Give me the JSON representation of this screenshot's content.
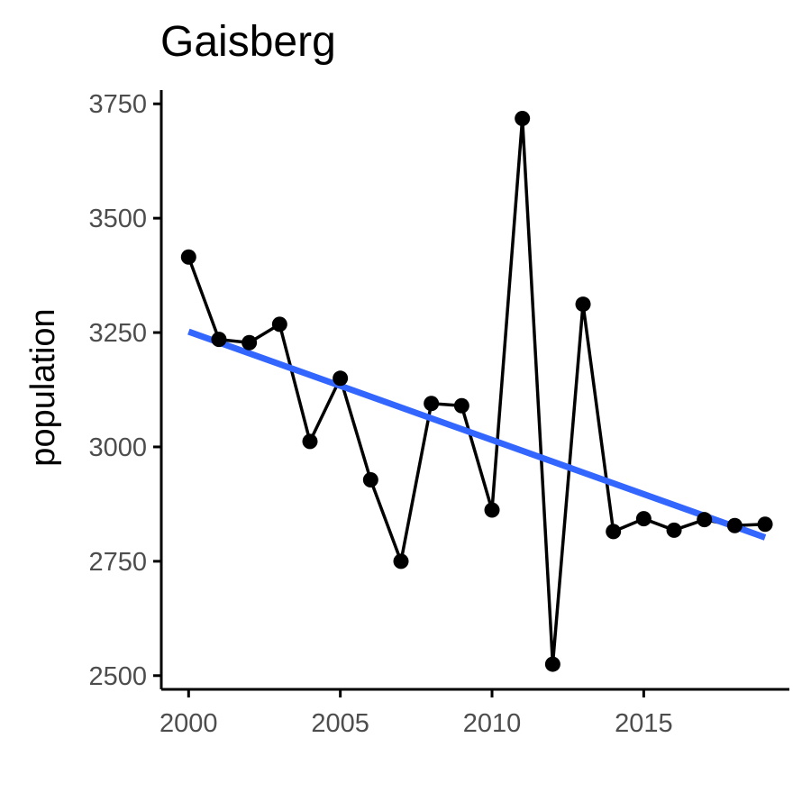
{
  "chart_data": {
    "type": "line",
    "title": "Gaisberg",
    "xlabel": "",
    "ylabel": "population",
    "xlim": [
      1999.1,
      2019.8
    ],
    "ylim": [
      2470,
      3780
    ],
    "xticks": [
      2000,
      2005,
      2010,
      2015
    ],
    "yticks": [
      2500,
      2750,
      3000,
      3250,
      3500,
      3750
    ],
    "grid": false,
    "legend": "none",
    "series": [
      {
        "x": [
          2000,
          2001,
          2002,
          2003,
          2004,
          2005,
          2006,
          2007,
          2008,
          2009,
          2010,
          2011,
          2012,
          2013,
          2014,
          2015,
          2016,
          2017,
          2018,
          2019
        ],
        "values": [
          3415,
          3235,
          3228,
          3268,
          3012,
          3150,
          2928,
          2750,
          3095,
          3090,
          2862,
          3718,
          2525,
          3312,
          2815,
          2843,
          2818,
          2841,
          2828,
          2831
        ],
        "color": "#000000",
        "markers": true
      }
    ],
    "trend_line": {
      "x": [
        2000,
        2019
      ],
      "values": [
        3252,
        2802
      ],
      "color": "#3366ff"
    }
  }
}
